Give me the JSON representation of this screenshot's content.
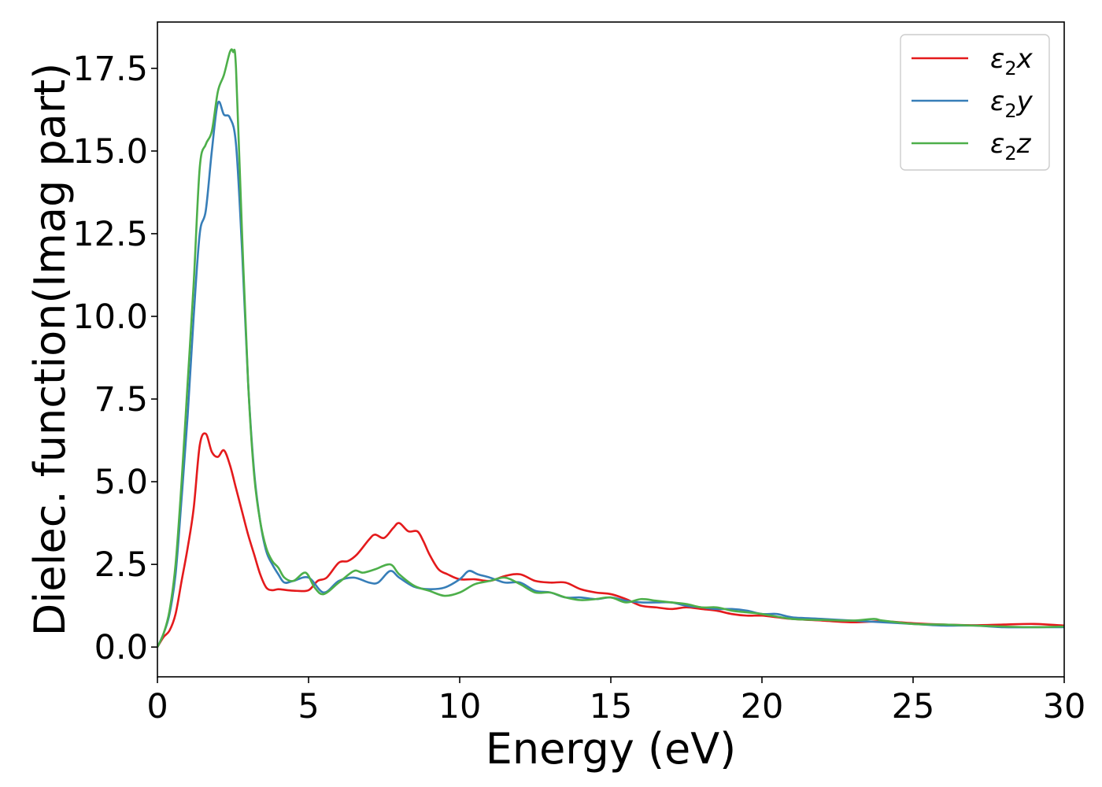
{
  "chart_data": {
    "type": "line",
    "title": "",
    "xlabel": "Energy (eV)",
    "ylabel": "Dielec. function(Imag part)",
    "xlim": [
      0,
      30
    ],
    "ylim": [
      -0.9,
      18.9
    ],
    "xticks": [
      0,
      5,
      10,
      15,
      20,
      25,
      30
    ],
    "yticks": [
      0.0,
      2.5,
      5.0,
      7.5,
      10.0,
      12.5,
      15.0,
      17.5
    ],
    "xtick_labels": [
      "0",
      "5",
      "10",
      "15",
      "20",
      "25",
      "30"
    ],
    "ytick_labels": [
      "0.0",
      "2.5",
      "5.0",
      "7.5",
      "10.0",
      "12.5",
      "15.0",
      "17.5"
    ],
    "grid": false,
    "legend_position": "top-right",
    "series": [
      {
        "name": "ε2x",
        "name_base": "ε",
        "name_sub": "2",
        "name_var": "x",
        "color": "#e41a1c",
        "x": [
          0.0,
          0.2,
          0.4,
          0.6,
          0.8,
          1.0,
          1.2,
          1.4,
          1.6,
          1.8,
          2.0,
          2.2,
          2.4,
          2.6,
          2.8,
          3.0,
          3.2,
          3.4,
          3.6,
          3.8,
          4.0,
          4.3,
          4.6,
          5.0,
          5.3,
          5.6,
          6.0,
          6.3,
          6.6,
          7.0,
          7.2,
          7.5,
          7.8,
          8.0,
          8.3,
          8.6,
          8.8,
          9.0,
          9.3,
          9.6,
          10.0,
          10.5,
          11.0,
          11.5,
          12.0,
          12.5,
          13.0,
          13.5,
          14.0,
          14.5,
          15.0,
          15.5,
          16.0,
          16.5,
          17.0,
          17.5,
          18.0,
          18.5,
          19.0,
          19.5,
          20.0,
          20.5,
          21.0,
          22.0,
          23.0,
          24.0,
          25.0,
          26.0,
          27.0,
          28.0,
          29.0,
          30.0
        ],
        "y": [
          0.0,
          0.3,
          0.5,
          1.0,
          2.0,
          3.0,
          4.2,
          6.1,
          6.45,
          5.9,
          5.75,
          5.95,
          5.5,
          4.8,
          4.1,
          3.4,
          2.8,
          2.2,
          1.8,
          1.72,
          1.75,
          1.72,
          1.7,
          1.72,
          2.0,
          2.1,
          2.55,
          2.6,
          2.8,
          3.25,
          3.4,
          3.3,
          3.6,
          3.75,
          3.5,
          3.5,
          3.2,
          2.8,
          2.35,
          2.2,
          2.05,
          2.05,
          2.0,
          2.15,
          2.2,
          2.0,
          1.95,
          1.95,
          1.75,
          1.65,
          1.6,
          1.45,
          1.25,
          1.2,
          1.15,
          1.2,
          1.15,
          1.1,
          1.0,
          0.95,
          0.95,
          0.9,
          0.85,
          0.8,
          0.75,
          0.78,
          0.72,
          0.68,
          0.66,
          0.68,
          0.7,
          0.65
        ]
      },
      {
        "name": "ε2y",
        "name_base": "ε",
        "name_sub": "2",
        "name_var": "y",
        "color": "#377eb8",
        "x": [
          0.0,
          0.2,
          0.4,
          0.6,
          0.8,
          1.0,
          1.2,
          1.4,
          1.6,
          1.8,
          2.0,
          2.2,
          2.4,
          2.6,
          2.8,
          3.0,
          3.2,
          3.4,
          3.6,
          3.8,
          4.0,
          4.2,
          4.5,
          5.0,
          5.5,
          6.0,
          6.5,
          7.0,
          7.3,
          7.7,
          8.0,
          8.5,
          9.0,
          9.5,
          10.0,
          10.3,
          10.6,
          11.0,
          11.5,
          12.0,
          12.5,
          13.0,
          13.5,
          14.0,
          14.5,
          15.0,
          15.5,
          16.0,
          16.5,
          17.0,
          17.5,
          18.0,
          18.5,
          19.0,
          19.5,
          20.0,
          20.5,
          21.0,
          22.0,
          23.0,
          24.0,
          25.0,
          26.0,
          27.0,
          28.0,
          29.0,
          30.0
        ],
        "y": [
          0.0,
          0.4,
          1.0,
          2.2,
          4.5,
          7.0,
          10.0,
          12.5,
          13.2,
          15.0,
          16.45,
          16.1,
          16.0,
          15.2,
          12.0,
          8.0,
          5.3,
          3.8,
          2.9,
          2.5,
          2.2,
          1.95,
          2.0,
          2.1,
          1.65,
          2.0,
          2.1,
          1.95,
          1.95,
          2.3,
          2.1,
          1.82,
          1.75,
          1.8,
          2.05,
          2.3,
          2.2,
          2.1,
          1.95,
          1.95,
          1.7,
          1.65,
          1.5,
          1.5,
          1.45,
          1.5,
          1.4,
          1.35,
          1.35,
          1.35,
          1.25,
          1.2,
          1.15,
          1.15,
          1.1,
          1.0,
          1.0,
          0.9,
          0.85,
          0.8,
          0.75,
          0.7,
          0.65,
          0.65,
          0.6,
          0.6,
          0.6
        ]
      },
      {
        "name": "ε2z",
        "name_base": "ε",
        "name_sub": "2",
        "name_var": "z",
        "color": "#4daf4a",
        "x": [
          0.0,
          0.2,
          0.4,
          0.6,
          0.8,
          1.0,
          1.2,
          1.4,
          1.6,
          1.8,
          2.0,
          2.2,
          2.4,
          2.5,
          2.6,
          2.8,
          3.0,
          3.2,
          3.4,
          3.6,
          3.8,
          4.0,
          4.2,
          4.5,
          4.9,
          5.2,
          5.5,
          6.0,
          6.5,
          6.8,
          7.2,
          7.7,
          8.0,
          8.5,
          9.0,
          9.5,
          10.0,
          10.5,
          11.0,
          11.5,
          12.0,
          12.5,
          13.0,
          13.5,
          14.0,
          14.5,
          15.0,
          15.5,
          16.0,
          16.5,
          17.0,
          17.5,
          18.0,
          18.5,
          19.0,
          19.5,
          20.0,
          21.0,
          22.0,
          23.0,
          23.7,
          24.0,
          25.0,
          26.0,
          27.0,
          28.0,
          29.0,
          30.0
        ],
        "y": [
          0.0,
          0.4,
          1.1,
          2.5,
          5.0,
          8.0,
          11.0,
          14.5,
          15.2,
          15.6,
          16.8,
          17.3,
          18.0,
          18.0,
          17.5,
          12.5,
          8.0,
          5.2,
          3.8,
          3.0,
          2.6,
          2.4,
          2.1,
          2.0,
          2.25,
          1.8,
          1.6,
          1.95,
          2.3,
          2.25,
          2.35,
          2.5,
          2.2,
          1.85,
          1.7,
          1.55,
          1.65,
          1.9,
          2.0,
          2.1,
          1.9,
          1.65,
          1.65,
          1.5,
          1.42,
          1.45,
          1.5,
          1.35,
          1.45,
          1.4,
          1.35,
          1.3,
          1.2,
          1.2,
          1.1,
          1.05,
          1.0,
          0.85,
          0.82,
          0.8,
          0.85,
          0.8,
          0.7,
          0.68,
          0.65,
          0.62,
          0.6,
          0.62
        ]
      }
    ]
  }
}
